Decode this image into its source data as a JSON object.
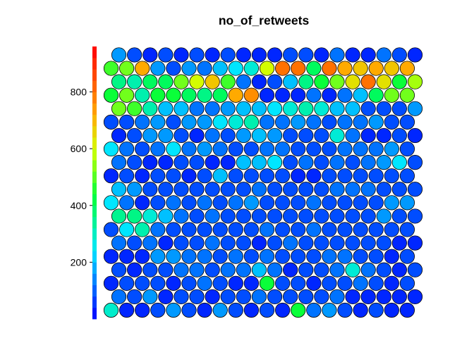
{
  "chart_data": {
    "type": "heatmap",
    "subtype": "som-hexagonal-property-map",
    "title": "no_of_retweets",
    "grid": {
      "xdim": 20,
      "ydim": 20,
      "topology": "hexagonal"
    },
    "color_scale": {
      "palette": "rainbow",
      "min": 0,
      "max": 960,
      "ticks": [
        200,
        400,
        600,
        800
      ]
    },
    "legend_placement": "left",
    "values": [
      [
        290,
        40,
        40,
        80,
        160,
        80,
        40,
        160,
        80,
        40,
        80,
        40,
        440,
        120,
        160,
        80,
        40,
        80,
        40,
        40
      ],
      [
        120,
        80,
        160,
        40,
        80,
        80,
        40,
        80,
        80,
        120,
        80,
        80,
        80,
        80,
        120,
        40,
        40,
        40,
        40,
        40
      ],
      [
        40,
        80,
        80,
        80,
        40,
        80,
        120,
        80,
        40,
        40,
        440,
        80,
        80,
        40,
        80,
        80,
        120,
        80,
        40,
        80
      ],
      [
        80,
        40,
        80,
        80,
        120,
        120,
        80,
        120,
        120,
        200,
        120,
        40,
        80,
        80,
        120,
        280,
        120,
        80,
        40,
        80
      ],
      [
        40,
        40,
        40,
        160,
        160,
        120,
        120,
        80,
        120,
        80,
        120,
        80,
        80,
        80,
        120,
        120,
        80,
        80,
        40,
        80
      ],
      [
        120,
        80,
        120,
        40,
        80,
        80,
        120,
        80,
        80,
        40,
        80,
        120,
        80,
        80,
        80,
        80,
        80,
        80,
        40,
        40
      ],
      [
        80,
        240,
        320,
        120,
        80,
        80,
        80,
        80,
        80,
        80,
        120,
        80,
        80,
        120,
        80,
        80,
        80,
        80,
        80,
        80
      ],
      [
        350,
        360,
        280,
        200,
        120,
        80,
        120,
        80,
        80,
        80,
        80,
        80,
        80,
        80,
        80,
        80,
        80,
        160,
        80,
        80
      ],
      [
        240,
        120,
        40,
        80,
        120,
        80,
        120,
        80,
        120,
        160,
        80,
        80,
        80,
        120,
        80,
        80,
        80,
        80,
        160,
        160
      ],
      [
        200,
        160,
        80,
        80,
        80,
        80,
        80,
        80,
        80,
        120,
        80,
        80,
        80,
        80,
        120,
        120,
        120,
        80,
        80,
        80
      ],
      [
        40,
        80,
        40,
        80,
        80,
        40,
        80,
        200,
        80,
        80,
        80,
        80,
        40,
        40,
        80,
        80,
        80,
        80,
        80,
        80
      ],
      [
        120,
        80,
        40,
        40,
        80,
        80,
        40,
        40,
        200,
        200,
        240,
        80,
        120,
        80,
        120,
        80,
        120,
        160,
        240,
        80
      ],
      [
        240,
        120,
        80,
        120,
        240,
        120,
        160,
        120,
        80,
        80,
        120,
        120,
        80,
        80,
        80,
        120,
        120,
        120,
        160,
        80
      ],
      [
        40,
        80,
        160,
        160,
        80,
        40,
        120,
        80,
        160,
        200,
        160,
        80,
        80,
        80,
        280,
        120,
        40,
        40,
        80,
        40
      ],
      [
        80,
        80,
        120,
        160,
        80,
        160,
        160,
        240,
        280,
        320,
        120,
        120,
        160,
        120,
        80,
        120,
        120,
        160,
        80,
        80
      ],
      [
        520,
        480,
        320,
        200,
        200,
        120,
        120,
        160,
        200,
        200,
        240,
        280,
        320,
        280,
        200,
        200,
        80,
        80,
        80,
        160
      ],
      [
        440,
        520,
        320,
        440,
        440,
        400,
        360,
        400,
        720,
        760,
        40,
        40,
        40,
        120,
        40,
        120,
        200,
        400,
        520,
        520
      ],
      [
        360,
        320,
        400,
        400,
        520,
        600,
        680,
        480,
        120,
        40,
        80,
        200,
        360,
        440,
        520,
        640,
        800,
        640,
        440,
        560
      ],
      [
        480,
        520,
        720,
        160,
        80,
        160,
        120,
        200,
        240,
        280,
        600,
        800,
        800,
        400,
        800,
        720,
        680,
        720,
        680,
        720
      ],
      [
        160,
        80,
        40,
        80,
        40,
        80,
        40,
        80,
        40,
        40,
        40,
        80,
        80,
        40,
        120,
        40,
        40,
        120,
        80,
        40
      ]
    ]
  }
}
